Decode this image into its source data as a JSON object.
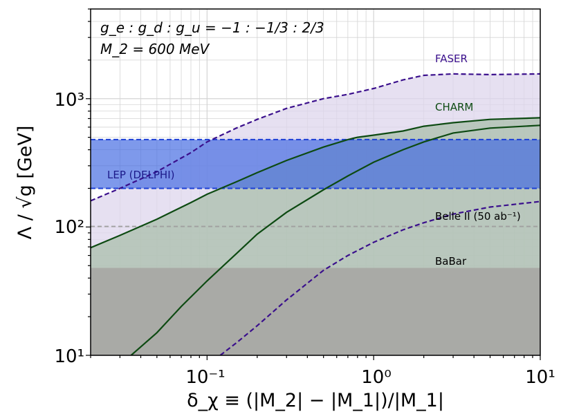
{
  "chart_data": {
    "type": "line",
    "xscale": "log",
    "yscale": "log",
    "xlim": [
      0.02,
      10
    ],
    "ylim": [
      10,
      5000
    ],
    "grid": true,
    "xlabel": "δ_χ ≡ (|M_2| − |M_1|)/|M_1|",
    "ylabel": "Λ / √g [GeV]",
    "xticks": [
      "10⁻¹",
      "10⁰",
      "10¹"
    ],
    "yticks": [
      "10¹",
      "10²",
      "10³"
    ],
    "annotations": [
      "g_e : g_d : g_u = −1 : −1/3 : 2/3",
      "M_2 = 600 MeV"
    ],
    "regions": [
      {
        "name": "BaBar",
        "y_max": 48,
        "color": "#a9aaa6"
      },
      {
        "name": "LEP (DELPHI)",
        "y_range": [
          200,
          480
        ],
        "color": "#4169e1"
      }
    ],
    "reference_lines": [
      {
        "name": "Belle II (50 ab⁻¹)",
        "y": 101,
        "style": "dashed",
        "color": "#a0a0a0"
      }
    ],
    "series": [
      {
        "name": "FASER",
        "style": "dashed",
        "color": "#3a0f8c",
        "x": [
          0.02,
          0.03,
          0.05,
          0.08,
          0.1,
          0.15,
          0.2,
          0.3,
          0.5,
          0.7,
          1.0,
          1.5,
          2.0,
          3.0,
          5.0,
          10.0
        ],
        "y": [
          160,
          200,
          270,
          380,
          460,
          590,
          690,
          840,
          1000,
          1080,
          1200,
          1400,
          1520,
          1560,
          1540,
          1560
        ]
      },
      {
        "name": "FASER (lower edge)",
        "style": "dashed",
        "color": "#3a0f8c",
        "x": [
          0.12,
          0.15,
          0.2,
          0.3,
          0.5,
          0.7,
          1.0,
          1.5,
          2.0,
          3.0,
          5.0,
          10.0
        ],
        "y": [
          10,
          12.5,
          17,
          27,
          46,
          60,
          76,
          95,
          108,
          126,
          143,
          158
        ]
      },
      {
        "name": "CHARM",
        "style": "solid",
        "color": "#0d4a12",
        "x": [
          0.02,
          0.03,
          0.05,
          0.08,
          0.1,
          0.15,
          0.2,
          0.3,
          0.5,
          0.7,
          0.8,
          1.0,
          1.5,
          2.0,
          3.0,
          5.0,
          10.0
        ],
        "y": [
          69,
          86,
          115,
          155,
          180,
          225,
          265,
          330,
          420,
          480,
          500,
          520,
          560,
          610,
          650,
          690,
          710
        ]
      },
      {
        "name": "CHARM (lower edge)",
        "style": "solid",
        "color": "#0d4a12",
        "x": [
          0.035,
          0.05,
          0.07,
          0.1,
          0.15,
          0.2,
          0.3,
          0.5,
          0.7,
          1.0,
          1.5,
          2.0,
          3.0,
          5.0,
          10.0
        ],
        "y": [
          10,
          15,
          24,
          38,
          62,
          88,
          130,
          195,
          250,
          320,
          400,
          460,
          540,
          590,
          620
        ]
      }
    ],
    "labels": [
      {
        "text": "FASER",
        "color": "#3a0f8c"
      },
      {
        "text": "CHARM",
        "color": "#0d4a12"
      },
      {
        "text": "LEP (DELPHI)",
        "color": "#1c1a8a"
      },
      {
        "text": "Belle II (50 ab⁻¹)",
        "color": "#000000"
      },
      {
        "text": "BaBar",
        "color": "#000000"
      }
    ]
  }
}
